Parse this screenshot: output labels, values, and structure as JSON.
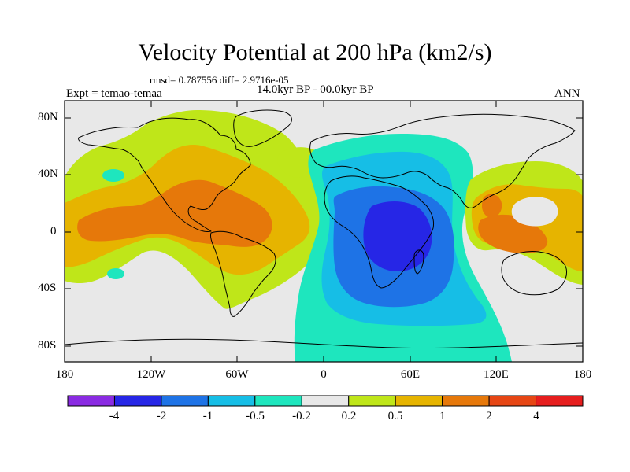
{
  "title": "Velocity Potential at 200 hPa (km2/s)",
  "stats": "rmsd= 0.787556 diff= 2.9716e-05",
  "left_label": "Expt = temao-temaa",
  "center_label": "14.0kyr BP - 00.0kyr BP",
  "right_label": "ANN",
  "y_axis": [
    "80N",
    "40N",
    "0",
    "40S",
    "80S"
  ],
  "x_axis": [
    "180",
    "120W",
    "60W",
    "0",
    "60E",
    "120E",
    "180"
  ],
  "colorbar": {
    "colors": [
      "#8a2be2",
      "#2626e6",
      "#1e73e6",
      "#16bee6",
      "#1ee6be",
      "#e8e8e8",
      "#bfe619",
      "#e6b400",
      "#e6780a",
      "#e64614",
      "#e61e1e"
    ],
    "labels": [
      "-4",
      "-2",
      "-1",
      "-0.5",
      "-0.2",
      "0.2",
      "0.5",
      "1",
      "2",
      "4"
    ]
  },
  "colors": {
    "neutral": "#e8e8e8",
    "yellow_green": "#bfe619",
    "gold": "#e6b400",
    "orange": "#e6780a",
    "cyan_green": "#1ee6be",
    "sky": "#16bee6",
    "blue": "#1e73e6",
    "indigo": "#2626e6"
  }
}
